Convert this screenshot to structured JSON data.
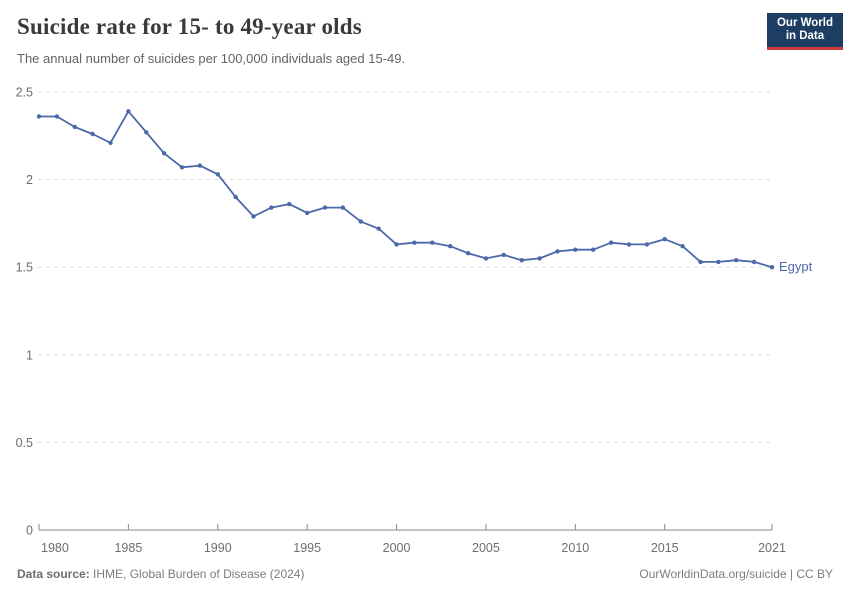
{
  "header": {
    "title": "Suicide rate for 15- to 49-year olds",
    "subtitle": "The annual number of suicides per 100,000 individuals aged 15-49.",
    "logo": {
      "line1": "Our World",
      "line2": "in Data",
      "bg_color": "#1d3d63",
      "accent_color": "#cf3b3b"
    }
  },
  "chart_data": {
    "type": "line",
    "title": "Suicide rate for 15- to 49-year olds",
    "subtitle": "The annual number of suicides per 100,000 individuals aged 15-49.",
    "xlabel": "",
    "ylabel": "",
    "xlim": [
      1980,
      2021
    ],
    "ylim": [
      0,
      2.5
    ],
    "x_ticks": [
      1980,
      1985,
      1990,
      1995,
      2000,
      2005,
      2010,
      2015,
      2021
    ],
    "y_ticks": [
      0,
      0.5,
      1,
      1.5,
      2,
      2.5
    ],
    "grid": "horizontal-dashed",
    "legend_position": "end-of-line",
    "line_color": "#4b69a8",
    "grid_color": "#dedede",
    "axis_color": "#8a8a8a",
    "tick_label_color": "#6e6e6e",
    "series": [
      {
        "name": "Egypt",
        "color": "#4b69a8",
        "x": [
          1980,
          1981,
          1982,
          1983,
          1984,
          1985,
          1986,
          1987,
          1988,
          1989,
          1990,
          1991,
          1992,
          1993,
          1994,
          1995,
          1996,
          1997,
          1998,
          1999,
          2000,
          2001,
          2002,
          2003,
          2004,
          2005,
          2006,
          2007,
          2008,
          2009,
          2010,
          2011,
          2012,
          2013,
          2014,
          2015,
          2016,
          2017,
          2018,
          2019,
          2020,
          2021
        ],
        "values": [
          2.36,
          2.36,
          2.3,
          2.26,
          2.21,
          2.39,
          2.27,
          2.15,
          2.07,
          2.08,
          2.03,
          1.9,
          1.79,
          1.84,
          1.86,
          1.81,
          1.84,
          1.84,
          1.76,
          1.72,
          1.63,
          1.64,
          1.64,
          1.62,
          1.58,
          1.55,
          1.57,
          1.54,
          1.55,
          1.59,
          1.6,
          1.6,
          1.64,
          1.63,
          1.63,
          1.66,
          1.62,
          1.53,
          1.53,
          1.54,
          1.53,
          1.5
        ]
      }
    ]
  },
  "footer": {
    "source_label": "Data source:",
    "source_text": " IHME, Global Burden of Disease (2024)",
    "credit": "OurWorldinData.org/suicide | CC BY"
  }
}
